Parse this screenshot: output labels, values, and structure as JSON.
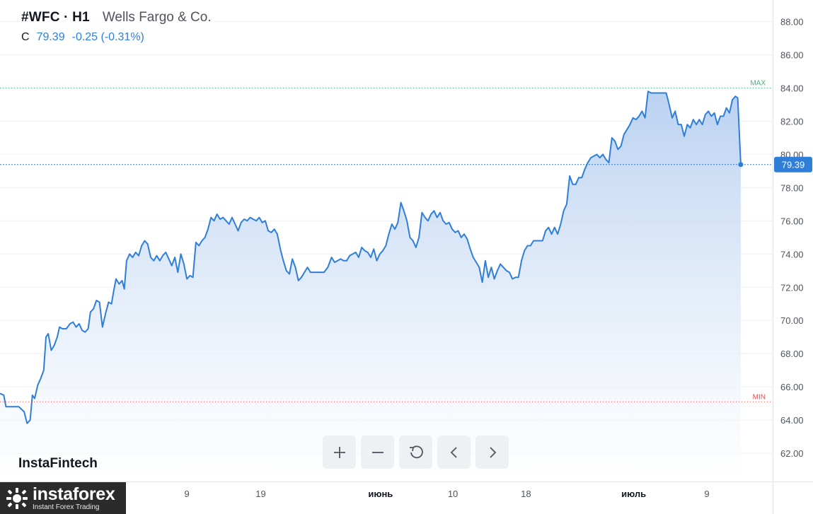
{
  "header": {
    "symbol": "#WFC · H1",
    "company": "Wells Fargo & Co.",
    "quote_label": "C",
    "last_price": "79.39",
    "change": "-0.25 (-0.31%)"
  },
  "brand": {
    "text": "InstaFintech"
  },
  "logo": {
    "name": "instaforex",
    "tagline": "Instant Forex Trading"
  },
  "toolbar": {
    "buttons": [
      {
        "name": "zoom-in-button",
        "icon": "plus-icon"
      },
      {
        "name": "zoom-out-button",
        "icon": "minus-icon"
      },
      {
        "name": "reset-button",
        "icon": "reset-icon"
      },
      {
        "name": "scroll-left-button",
        "icon": "chevron-left-icon"
      },
      {
        "name": "scroll-right-button",
        "icon": "chevron-right-icon"
      }
    ]
  },
  "colors": {
    "line": "#2f7ed8",
    "fill_top": "#b6cff0",
    "fill_bottom": "#ffffff",
    "grid": "#eef0f3",
    "max_line": "#4caf7a",
    "min_line": "#e05252",
    "price_tag": "#2f7ed8"
  },
  "chart_data": {
    "type": "area",
    "title": "",
    "xlabel": "",
    "ylabel": "",
    "ylim": [
      60.3,
      89.3
    ],
    "xlim": [
      0,
      100
    ],
    "grid": true,
    "y_ticks": [
      "62.00",
      "64.00",
      "66.00",
      "68.00",
      "70.00",
      "72.00",
      "74.00",
      "76.00",
      "78.00",
      "80.00",
      "82.00",
      "84.00",
      "86.00",
      "88.00"
    ],
    "x_ticks": [
      {
        "label": "9",
        "x": 24.8,
        "month": false
      },
      {
        "label": "19",
        "x": 34.6,
        "month": false
      },
      {
        "label": "июнь",
        "x": 50.5,
        "month": true
      },
      {
        "label": "10",
        "x": 60.1,
        "month": false
      },
      {
        "label": "18",
        "x": 69.8,
        "month": false
      },
      {
        "label": "июль",
        "x": 84.1,
        "month": true
      },
      {
        "label": "9",
        "x": 93.8,
        "month": false
      }
    ],
    "max": {
      "label": "MAX",
      "value": 84.0
    },
    "min": {
      "label": "MIN",
      "value": 65.1
    },
    "last": {
      "label": "79.39",
      "value": 79.39
    },
    "series": [
      {
        "values": [
          [
            0.0,
            65.6
          ],
          [
            0.5,
            65.5
          ],
          [
            0.8,
            64.8
          ],
          [
            1.5,
            64.8
          ],
          [
            2.5,
            64.8
          ],
          [
            3.2,
            64.5
          ],
          [
            3.6,
            63.8
          ],
          [
            4.0,
            64.0
          ],
          [
            4.3,
            65.5
          ],
          [
            4.6,
            65.3
          ],
          [
            5.0,
            66.1
          ],
          [
            5.4,
            66.5
          ],
          [
            5.8,
            67.0
          ],
          [
            6.1,
            69.0
          ],
          [
            6.4,
            69.2
          ],
          [
            6.8,
            68.2
          ],
          [
            7.2,
            68.5
          ],
          [
            7.6,
            69.0
          ],
          [
            7.9,
            69.6
          ],
          [
            8.3,
            69.5
          ],
          [
            8.8,
            69.5
          ],
          [
            9.3,
            69.8
          ],
          [
            9.7,
            69.9
          ],
          [
            10.1,
            69.6
          ],
          [
            10.5,
            69.8
          ],
          [
            10.9,
            69.4
          ],
          [
            11.3,
            69.3
          ],
          [
            11.7,
            69.5
          ],
          [
            12.0,
            70.5
          ],
          [
            12.4,
            70.7
          ],
          [
            12.8,
            71.2
          ],
          [
            13.2,
            71.1
          ],
          [
            13.6,
            69.6
          ],
          [
            14.0,
            70.4
          ],
          [
            14.4,
            71.1
          ],
          [
            14.8,
            71.0
          ],
          [
            15.1,
            71.8
          ],
          [
            15.4,
            72.5
          ],
          [
            15.8,
            72.2
          ],
          [
            16.2,
            72.4
          ],
          [
            16.5,
            71.9
          ],
          [
            16.8,
            73.6
          ],
          [
            17.2,
            74.0
          ],
          [
            17.6,
            73.8
          ],
          [
            18.0,
            74.1
          ],
          [
            18.4,
            73.9
          ],
          [
            18.8,
            74.5
          ],
          [
            19.2,
            74.8
          ],
          [
            19.6,
            74.6
          ],
          [
            20.0,
            73.8
          ],
          [
            20.4,
            73.6
          ],
          [
            20.8,
            73.9
          ],
          [
            21.2,
            73.6
          ],
          [
            21.6,
            73.9
          ],
          [
            22.0,
            74.1
          ],
          [
            22.4,
            73.7
          ],
          [
            22.8,
            73.3
          ],
          [
            23.2,
            73.8
          ],
          [
            23.6,
            72.9
          ],
          [
            24.0,
            74.0
          ],
          [
            24.4,
            73.4
          ],
          [
            24.8,
            72.5
          ],
          [
            25.2,
            72.7
          ],
          [
            25.6,
            72.6
          ],
          [
            26.0,
            74.7
          ],
          [
            26.4,
            74.5
          ],
          [
            26.8,
            74.8
          ],
          [
            27.2,
            75.0
          ],
          [
            27.6,
            75.5
          ],
          [
            28.0,
            76.2
          ],
          [
            28.4,
            76.0
          ],
          [
            28.8,
            76.4
          ],
          [
            29.2,
            76.1
          ],
          [
            29.6,
            76.2
          ],
          [
            30.0,
            76.0
          ],
          [
            30.4,
            75.8
          ],
          [
            30.8,
            76.2
          ],
          [
            31.2,
            75.8
          ],
          [
            31.6,
            75.4
          ],
          [
            32.0,
            75.9
          ],
          [
            32.4,
            76.1
          ],
          [
            32.8,
            76.0
          ],
          [
            33.2,
            76.2
          ],
          [
            33.6,
            76.1
          ],
          [
            34.0,
            76.0
          ],
          [
            34.4,
            76.2
          ],
          [
            34.8,
            75.9
          ],
          [
            35.2,
            76.0
          ],
          [
            35.6,
            75.4
          ],
          [
            36.0,
            75.3
          ],
          [
            36.4,
            75.5
          ],
          [
            36.8,
            75.2
          ],
          [
            37.2,
            74.3
          ],
          [
            37.6,
            73.6
          ],
          [
            38.0,
            73.0
          ],
          [
            38.4,
            72.8
          ],
          [
            38.8,
            73.7
          ],
          [
            39.2,
            73.2
          ],
          [
            39.6,
            72.4
          ],
          [
            40.0,
            72.6
          ],
          [
            40.4,
            72.9
          ],
          [
            40.8,
            73.2
          ],
          [
            41.2,
            72.9
          ],
          [
            41.6,
            72.9
          ],
          [
            42.0,
            72.9
          ],
          [
            42.5,
            72.9
          ],
          [
            43.0,
            72.9
          ],
          [
            43.5,
            73.2
          ],
          [
            44.0,
            73.8
          ],
          [
            44.4,
            73.5
          ],
          [
            44.8,
            73.6
          ],
          [
            45.2,
            73.7
          ],
          [
            45.6,
            73.6
          ],
          [
            46.0,
            73.6
          ],
          [
            46.4,
            73.9
          ],
          [
            46.8,
            74.0
          ],
          [
            47.2,
            74.1
          ],
          [
            47.6,
            73.8
          ],
          [
            48.0,
            74.4
          ],
          [
            48.4,
            74.2
          ],
          [
            48.8,
            74.1
          ],
          [
            49.2,
            73.8
          ],
          [
            49.6,
            74.3
          ],
          [
            50.0,
            73.6
          ],
          [
            50.4,
            74.0
          ],
          [
            50.8,
            74.2
          ],
          [
            51.2,
            74.5
          ],
          [
            51.6,
            75.2
          ],
          [
            52.0,
            75.8
          ],
          [
            52.4,
            75.5
          ],
          [
            52.8,
            75.9
          ],
          [
            53.2,
            77.1
          ],
          [
            53.6,
            76.6
          ],
          [
            54.0,
            76.0
          ],
          [
            54.4,
            75.0
          ],
          [
            54.8,
            74.8
          ],
          [
            55.2,
            74.4
          ],
          [
            55.6,
            75.0
          ],
          [
            56.0,
            76.5
          ],
          [
            56.4,
            76.2
          ],
          [
            56.8,
            76.0
          ],
          [
            57.2,
            76.4
          ],
          [
            57.6,
            76.6
          ],
          [
            58.0,
            76.2
          ],
          [
            58.4,
            76.5
          ],
          [
            58.8,
            76.0
          ],
          [
            59.2,
            75.8
          ],
          [
            59.6,
            75.9
          ],
          [
            60.0,
            75.5
          ],
          [
            60.4,
            75.3
          ],
          [
            60.8,
            75.4
          ],
          [
            61.2,
            75.0
          ],
          [
            61.6,
            75.2
          ],
          [
            62.0,
            74.9
          ],
          [
            62.4,
            74.3
          ],
          [
            62.8,
            73.8
          ],
          [
            63.2,
            73.5
          ],
          [
            63.6,
            73.2
          ],
          [
            64.0,
            72.3
          ],
          [
            64.4,
            73.6
          ],
          [
            64.8,
            72.6
          ],
          [
            65.2,
            73.2
          ],
          [
            65.6,
            72.5
          ],
          [
            66.0,
            73.0
          ],
          [
            66.4,
            73.4
          ],
          [
            66.8,
            73.2
          ],
          [
            67.2,
            73.0
          ],
          [
            67.6,
            72.9
          ],
          [
            68.0,
            72.5
          ],
          [
            68.4,
            72.6
          ],
          [
            68.8,
            72.6
          ],
          [
            69.2,
            73.6
          ],
          [
            69.6,
            74.2
          ],
          [
            70.0,
            74.5
          ],
          [
            70.4,
            74.5
          ],
          [
            70.8,
            74.8
          ],
          [
            71.2,
            74.8
          ],
          [
            71.6,
            74.8
          ],
          [
            72.0,
            74.8
          ],
          [
            72.4,
            75.4
          ],
          [
            72.8,
            75.6
          ],
          [
            73.2,
            75.2
          ],
          [
            73.6,
            75.6
          ],
          [
            74.0,
            75.2
          ],
          [
            74.4,
            75.8
          ],
          [
            74.8,
            76.6
          ],
          [
            75.2,
            77.0
          ],
          [
            75.6,
            78.7
          ],
          [
            76.0,
            78.2
          ],
          [
            76.4,
            78.2
          ],
          [
            76.8,
            78.6
          ],
          [
            77.2,
            78.6
          ],
          [
            77.6,
            79.1
          ],
          [
            78.0,
            79.5
          ],
          [
            78.4,
            79.8
          ],
          [
            78.8,
            79.9
          ],
          [
            79.2,
            80.0
          ],
          [
            79.6,
            79.8
          ],
          [
            80.0,
            80.0
          ],
          [
            80.4,
            79.7
          ],
          [
            80.8,
            79.5
          ],
          [
            81.2,
            81.0
          ],
          [
            81.6,
            80.8
          ],
          [
            82.0,
            80.3
          ],
          [
            82.4,
            80.5
          ],
          [
            82.8,
            81.2
          ],
          [
            83.2,
            81.5
          ],
          [
            83.6,
            81.8
          ],
          [
            84.0,
            82.2
          ],
          [
            84.4,
            82.1
          ],
          [
            84.8,
            82.3
          ],
          [
            85.2,
            82.6
          ],
          [
            85.6,
            82.2
          ],
          [
            86.0,
            83.8
          ],
          [
            86.4,
            83.7
          ],
          [
            86.8,
            83.7
          ],
          [
            87.2,
            83.7
          ],
          [
            87.6,
            83.7
          ],
          [
            88.0,
            83.7
          ],
          [
            88.4,
            83.7
          ],
          [
            88.8,
            83.0
          ],
          [
            89.2,
            82.2
          ],
          [
            89.6,
            82.6
          ],
          [
            90.0,
            81.8
          ],
          [
            90.4,
            81.8
          ],
          [
            90.8,
            81.1
          ],
          [
            91.2,
            81.8
          ],
          [
            91.6,
            81.6
          ],
          [
            92.0,
            82.1
          ],
          [
            92.4,
            81.8
          ],
          [
            92.8,
            82.1
          ],
          [
            93.2,
            81.8
          ],
          [
            93.6,
            82.4
          ],
          [
            94.0,
            82.6
          ],
          [
            94.4,
            82.3
          ],
          [
            94.8,
            82.5
          ],
          [
            95.2,
            81.8
          ],
          [
            95.6,
            82.3
          ],
          [
            96.0,
            82.3
          ],
          [
            96.4,
            82.8
          ],
          [
            96.8,
            82.5
          ],
          [
            97.2,
            83.3
          ],
          [
            97.6,
            83.5
          ],
          [
            97.9,
            83.4
          ],
          [
            98.3,
            79.39
          ]
        ]
      }
    ]
  }
}
